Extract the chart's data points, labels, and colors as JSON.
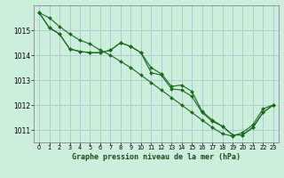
{
  "title": "Graphe pression niveau de la mer (hPa)",
  "background_color": "#cceedd",
  "grid_color": "#aacccc",
  "line_color": "#1a6b1a",
  "xlim": [
    -0.5,
    23.5
  ],
  "ylim": [
    1010.5,
    1016.0
  ],
  "yticks": [
    1011,
    1012,
    1013,
    1014,
    1015
  ],
  "xticks": [
    0,
    1,
    2,
    3,
    4,
    5,
    6,
    7,
    8,
    9,
    10,
    11,
    12,
    13,
    14,
    15,
    16,
    17,
    18,
    19,
    20,
    21,
    22,
    23
  ],
  "series": [
    [
      1015.7,
      1015.5,
      1015.15,
      1014.85,
      1014.6,
      1014.45,
      1014.2,
      1014.0,
      1013.75,
      1013.5,
      1013.2,
      1012.9,
      1012.6,
      1012.3,
      1012.0,
      1011.7,
      1011.4,
      1011.1,
      1010.85,
      1010.75,
      1010.9,
      1011.2,
      1011.85,
      1012.0
    ],
    [
      1015.7,
      1015.1,
      1014.85,
      1014.25,
      1014.15,
      1014.1,
      1014.1,
      1014.2,
      1014.5,
      1014.35,
      1014.1,
      1013.5,
      1013.25,
      1012.75,
      1012.8,
      1012.55,
      1011.75,
      1011.4,
      1011.15,
      1010.8,
      1010.8,
      1011.1,
      1011.7,
      1012.0
    ],
    [
      1015.7,
      1015.1,
      1014.85,
      1014.25,
      1014.15,
      1014.1,
      1014.1,
      1014.2,
      1014.5,
      1014.35,
      1014.1,
      1013.3,
      1013.2,
      1012.65,
      1012.6,
      1012.35,
      1011.7,
      1011.35,
      1011.15,
      1010.8,
      1010.8,
      1011.1,
      1011.7,
      1012.0
    ]
  ]
}
